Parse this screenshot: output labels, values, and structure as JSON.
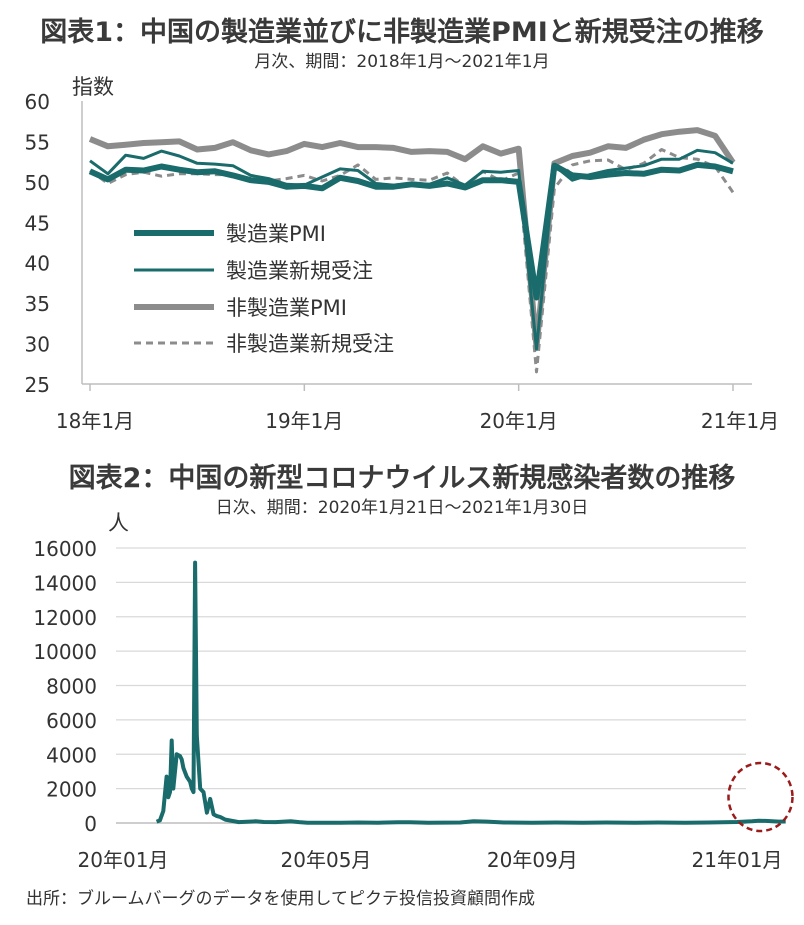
{
  "chart_data": [
    {
      "type": "line",
      "title": "図表1：中国の製造業並びに非製造業PMIと新規受注の推移",
      "subtitle": "月次、期間：2018年1月～2021年1月",
      "ylabel": "指数",
      "ylim": [
        25,
        60
      ],
      "yticks": [
        25,
        30,
        35,
        40,
        45,
        50,
        55,
        60
      ],
      "xtick_labels": [
        "18年1月",
        "19年1月",
        "20年1月",
        "21年1月"
      ],
      "x": [
        "2018-01",
        "2018-02",
        "2018-03",
        "2018-04",
        "2018-05",
        "2018-06",
        "2018-07",
        "2018-08",
        "2018-09",
        "2018-10",
        "2018-11",
        "2018-12",
        "2019-01",
        "2019-02",
        "2019-03",
        "2019-04",
        "2019-05",
        "2019-06",
        "2019-07",
        "2019-08",
        "2019-09",
        "2019-10",
        "2019-11",
        "2019-12",
        "2020-01",
        "2020-02",
        "2020-03",
        "2020-04",
        "2020-05",
        "2020-06",
        "2020-07",
        "2020-08",
        "2020-09",
        "2020-10",
        "2020-11",
        "2020-12",
        "2021-01"
      ],
      "series": [
        {
          "name": "製造業PMI",
          "color": "#1a6b6b",
          "style": "thick",
          "values": [
            51.3,
            50.3,
            51.5,
            51.4,
            51.9,
            51.5,
            51.2,
            51.3,
            50.8,
            50.2,
            50.0,
            49.4,
            49.5,
            49.2,
            50.5,
            50.1,
            49.4,
            49.4,
            49.7,
            49.5,
            49.8,
            49.3,
            50.2,
            50.2,
            50.0,
            35.7,
            52.0,
            50.8,
            50.6,
            50.9,
            51.1,
            51.0,
            51.5,
            51.4,
            52.1,
            51.9,
            51.3
          ]
        },
        {
          "name": "製造業新規受注",
          "color": "#1a6b6b",
          "style": "thin",
          "values": [
            52.6,
            51.0,
            53.3,
            52.9,
            53.8,
            53.2,
            52.3,
            52.2,
            52.0,
            50.8,
            50.4,
            49.7,
            49.6,
            50.6,
            51.6,
            51.4,
            49.8,
            49.6,
            49.8,
            49.7,
            50.5,
            49.6,
            51.3,
            51.2,
            51.4,
            29.3,
            52.0,
            50.2,
            50.9,
            51.4,
            51.7,
            52.0,
            52.8,
            52.8,
            53.9,
            53.6,
            52.3
          ]
        },
        {
          "name": "非製造業PMI",
          "color": "#8c8c8c",
          "style": "thick",
          "values": [
            55.3,
            54.4,
            54.6,
            54.8,
            54.9,
            55.0,
            54.0,
            54.2,
            54.9,
            53.9,
            53.4,
            53.8,
            54.7,
            54.3,
            54.8,
            54.3,
            54.3,
            54.2,
            53.7,
            53.8,
            53.7,
            52.8,
            54.4,
            53.5,
            54.1,
            29.6,
            52.3,
            53.2,
            53.6,
            54.4,
            54.2,
            55.2,
            55.9,
            56.2,
            56.4,
            55.7,
            52.4
          ]
        },
        {
          "name": "非製造業新規受注",
          "color": "#8c8c8c",
          "style": "dashed",
          "values": [
            51.4,
            49.8,
            50.9,
            51.2,
            50.7,
            51.0,
            51.0,
            50.9,
            50.9,
            50.1,
            50.1,
            50.4,
            50.8,
            50.1,
            50.8,
            52.1,
            50.3,
            50.5,
            50.3,
            50.2,
            51.1,
            49.4,
            51.3,
            50.1,
            51.1,
            26.5,
            49.2,
            52.1,
            52.6,
            52.7,
            51.5,
            52.3,
            54.0,
            53.0,
            52.8,
            51.9,
            48.7
          ]
        }
      ]
    },
    {
      "type": "line",
      "title": "図表2：中国の新型コロナウイルス新規感染者数の推移",
      "subtitle": "日次、期間：2020年1月21日～2021年1月30日",
      "ylabel": "人",
      "ylim": [
        0,
        16000
      ],
      "yticks": [
        0,
        2000,
        4000,
        6000,
        8000,
        10000,
        12000,
        14000,
        16000
      ],
      "xtick_labels": [
        "20年01月",
        "20年05月",
        "20年09月",
        "21年01月"
      ],
      "series": [
        {
          "name": "新規感染者数",
          "color": "#1a6b6b",
          "x": [
            "2020-01-21",
            "2020-01-23",
            "2020-01-25",
            "2020-01-27",
            "2020-01-28",
            "2020-01-29",
            "2020-01-30",
            "2020-01-31",
            "2020-02-02",
            "2020-02-04",
            "2020-02-05",
            "2020-02-06",
            "2020-02-08",
            "2020-02-10",
            "2020-02-11",
            "2020-02-12",
            "2020-02-13",
            "2020-02-14",
            "2020-02-16",
            "2020-02-18",
            "2020-02-20",
            "2020-02-22",
            "2020-02-24",
            "2020-02-26",
            "2020-02-28",
            "2020-03-02",
            "2020-03-10",
            "2020-03-20",
            "2020-03-25",
            "2020-04-01",
            "2020-04-10",
            "2020-04-15",
            "2020-04-20",
            "2020-05-01",
            "2020-05-10",
            "2020-05-20",
            "2020-06-01",
            "2020-06-13",
            "2020-06-20",
            "2020-07-01",
            "2020-07-20",
            "2020-07-28",
            "2020-08-05",
            "2020-08-15",
            "2020-09-01",
            "2020-09-15",
            "2020-10-01",
            "2020-10-15",
            "2020-11-01",
            "2020-11-15",
            "2020-12-01",
            "2020-12-15",
            "2021-01-01",
            "2021-01-10",
            "2021-01-14",
            "2021-01-18",
            "2021-01-22",
            "2021-01-26",
            "2021-01-30"
          ],
          "values": [
            77,
            150,
            700,
            2700,
            1500,
            1800,
            4800,
            2000,
            4000,
            3900,
            3700,
            3200,
            2700,
            2400,
            2000,
            1800,
            15150,
            5100,
            2000,
            1800,
            600,
            1400,
            500,
            400,
            350,
            200,
            50,
            100,
            60,
            50,
            100,
            50,
            20,
            10,
            10,
            30,
            20,
            40,
            40,
            10,
            30,
            100,
            80,
            30,
            20,
            30,
            20,
            30,
            20,
            30,
            20,
            30,
            60,
            100,
            130,
            120,
            100,
            80,
            90
          ]
        }
      ],
      "annotation": "dashed red circle around January 2021 uptick"
    }
  ],
  "source": "出所：ブルームバーグのデータを使用してピクテ投信投資顧問作成"
}
